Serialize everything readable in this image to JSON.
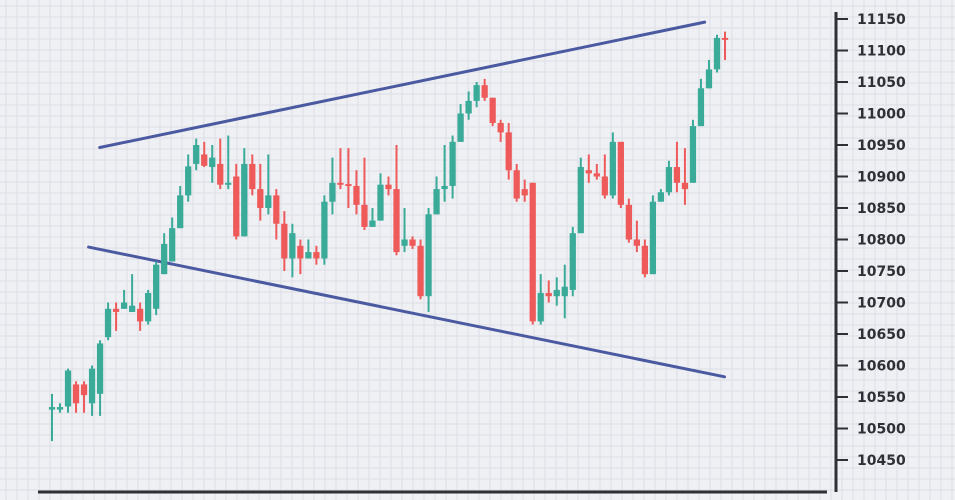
{
  "chart_data": {
    "type": "candlestick",
    "title": "",
    "xlabel": "",
    "ylabel": "",
    "ylim": [
      10420,
      11170
    ],
    "grid": true,
    "y_ticks": [
      "11150",
      "11100",
      "11050",
      "11000",
      "10950",
      "10900",
      "10850",
      "10800",
      "10750",
      "10700",
      "10650",
      "10600",
      "10550",
      "10500",
      "10450"
    ],
    "colors": {
      "up": "#3aaa99",
      "down": "#ee5a5a",
      "trendline": "#4b5aa0",
      "axis": "#2f2f36",
      "background": "#eff0f4",
      "grid": "#dcdde6"
    },
    "candles": [
      [
        10530,
        10534,
        10480,
        10555
      ],
      [
        10530,
        10534,
        10525,
        10540
      ],
      [
        10535,
        10592,
        10525,
        10595
      ],
      [
        10570,
        10540,
        10525,
        10575
      ],
      [
        10570,
        10553,
        10525,
        10575
      ],
      [
        10540,
        10595,
        10520,
        10600
      ],
      [
        10555,
        10635,
        10520,
        10640
      ],
      [
        10645,
        10690,
        10640,
        10700
      ],
      [
        10690,
        10685,
        10655,
        10700
      ],
      [
        10690,
        10700,
        10690,
        10720
      ],
      [
        10685,
        10695,
        10685,
        10745
      ],
      [
        10690,
        10670,
        10655,
        10700
      ],
      [
        10670,
        10715,
        10665,
        10720
      ],
      [
        10690,
        10760,
        10680,
        10765
      ],
      [
        10745,
        10793,
        10745,
        10810
      ],
      [
        10765,
        10818,
        10765,
        10835
      ],
      [
        10818,
        10870,
        10818,
        10885
      ],
      [
        10870,
        10916,
        10860,
        10935
      ],
      [
        10920,
        10950,
        10910,
        10960
      ],
      [
        10935,
        10917,
        10915,
        10955
      ],
      [
        10915,
        10930,
        10890,
        10950
      ],
      [
        10920,
        10887,
        10880,
        10960
      ],
      [
        10890,
        10890,
        10880,
        10965
      ],
      [
        10900,
        10805,
        10800,
        10920
      ],
      [
        10805,
        10920,
        10805,
        10945
      ],
      [
        10920,
        10880,
        10870,
        10935
      ],
      [
        10880,
        10850,
        10830,
        10920
      ],
      [
        10850,
        10870,
        10840,
        10935
      ],
      [
        10870,
        10825,
        10800,
        10880
      ],
      [
        10825,
        10770,
        10750,
        10845
      ],
      [
        10770,
        10810,
        10740,
        10825
      ],
      [
        10790,
        10770,
        10745,
        10800
      ],
      [
        10770,
        10780,
        10770,
        10800
      ],
      [
        10780,
        10770,
        10760,
        10790
      ],
      [
        10770,
        10860,
        10760,
        10870
      ],
      [
        10860,
        10890,
        10840,
        10930
      ],
      [
        10890,
        10888,
        10880,
        10945
      ],
      [
        10888,
        10885,
        10850,
        10945
      ],
      [
        10885,
        10855,
        10840,
        10910
      ],
      [
        10855,
        10820,
        10815,
        10930
      ],
      [
        10820,
        10830,
        10820,
        10850
      ],
      [
        10830,
        10887,
        10830,
        10905
      ],
      [
        10887,
        10880,
        10870,
        10900
      ],
      [
        10880,
        10780,
        10775,
        10950
      ],
      [
        10790,
        10800,
        10780,
        10850
      ],
      [
        10800,
        10790,
        10785,
        10805
      ],
      [
        10790,
        10710,
        10705,
        10800
      ],
      [
        10710,
        10840,
        10685,
        10850
      ],
      [
        10840,
        10880,
        10840,
        10900
      ],
      [
        10880,
        10885,
        10860,
        10950
      ],
      [
        10885,
        10955,
        10865,
        10965
      ],
      [
        10955,
        11000,
        10955,
        11015
      ],
      [
        11000,
        11020,
        10990,
        11035
      ],
      [
        11020,
        11045,
        11010,
        11050
      ],
      [
        11045,
        11025,
        11020,
        11055
      ],
      [
        11025,
        10985,
        10980,
        11025
      ],
      [
        10985,
        10970,
        10955,
        10990
      ],
      [
        10970,
        10910,
        10895,
        10985
      ],
      [
        10910,
        10865,
        10860,
        10920
      ],
      [
        10880,
        10870,
        10860,
        10895
      ],
      [
        10890,
        10670,
        10665,
        10890
      ],
      [
        10670,
        10715,
        10665,
        10745
      ],
      [
        10715,
        10710,
        10700,
        10735
      ],
      [
        10710,
        10720,
        10695,
        10740
      ],
      [
        10710,
        10725,
        10675,
        10760
      ],
      [
        10720,
        10810,
        10710,
        10820
      ],
      [
        10810,
        10915,
        10810,
        10930
      ],
      [
        10910,
        10905,
        10890,
        10935
      ],
      [
        10905,
        10900,
        10895,
        10920
      ],
      [
        10900,
        10870,
        10865,
        10935
      ],
      [
        10870,
        10955,
        10865,
        10970
      ],
      [
        10955,
        10855,
        10850,
        10955
      ],
      [
        10855,
        10800,
        10795,
        10865
      ],
      [
        10800,
        10790,
        10780,
        10830
      ],
      [
        10790,
        10745,
        10740,
        10800
      ],
      [
        10745,
        10860,
        10745,
        10870
      ],
      [
        10860,
        10875,
        10860,
        10880
      ],
      [
        10875,
        10915,
        10870,
        10925
      ],
      [
        10915,
        10890,
        10875,
        10955
      ],
      [
        10890,
        10880,
        10855,
        10945
      ],
      [
        10890,
        10980,
        10890,
        10990
      ],
      [
        10980,
        11040,
        10980,
        11055
      ],
      [
        11040,
        11070,
        11040,
        11085
      ],
      [
        11070,
        11120,
        11065,
        11125
      ],
      [
        11120,
        11118,
        11085,
        11130
      ]
    ],
    "trendlines": [
      {
        "name": "",
        "points": [
          [
            0.075,
            10946
          ],
          [
            0.835,
            11145
          ]
        ]
      },
      {
        "name": "",
        "points": [
          [
            0.061,
            10788
          ],
          [
            0.86,
            10582
          ]
        ]
      }
    ]
  }
}
